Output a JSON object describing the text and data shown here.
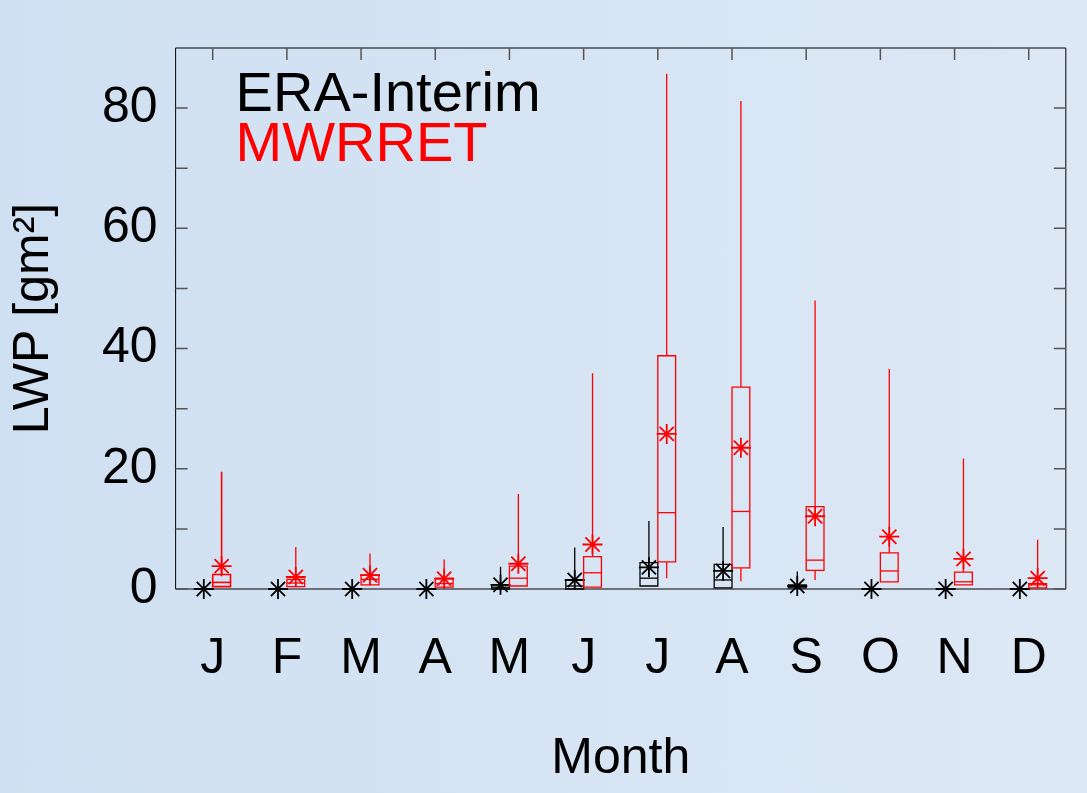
{
  "chart_data": {
    "type": "box",
    "xlabel": "Month",
    "ylabel": "LWP [gm²]",
    "categories": [
      "J",
      "F",
      "M",
      "A",
      "M",
      "J",
      "J",
      "A",
      "S",
      "O",
      "N",
      "D"
    ],
    "ylim": [
      0,
      90
    ],
    "yticks": [
      0,
      {
        "value": 10,
        "label": null
      },
      20,
      {
        "value": 30,
        "label": null
      },
      40,
      {
        "value": 50,
        "label": null
      },
      60,
      {
        "value": 70,
        "label": null
      },
      80
    ],
    "grid": false,
    "legend": "top left",
    "marker": "star",
    "series": [
      {
        "name": "ERA-Interim",
        "color": "#000000",
        "boxes": [
          {
            "low": 0,
            "q1": 0,
            "median": 0,
            "q3": 0,
            "high": 0,
            "mean": 0
          },
          {
            "low": 0,
            "q1": 0,
            "median": 0,
            "q3": 0,
            "high": 0,
            "mean": 0
          },
          {
            "low": 0,
            "q1": 0,
            "median": 0,
            "q3": 0,
            "high": 0,
            "mean": 0
          },
          {
            "low": 0,
            "q1": 0,
            "median": 0,
            "q3": 0,
            "high": 0,
            "mean": 0
          },
          {
            "low": 0,
            "q1": 0,
            "median": 0.3,
            "q3": 0.7,
            "high": 3.7,
            "mean": 0.7
          },
          {
            "low": 0,
            "q1": 0,
            "median": 0.5,
            "q3": 1.5,
            "high": 6.9,
            "mean": 1.5
          },
          {
            "low": 0.5,
            "q1": 0.5,
            "median": 1.8,
            "q3": 4.4,
            "high": 11.3,
            "mean": 3.6
          },
          {
            "low": 0.2,
            "q1": 0.2,
            "median": 1.5,
            "q3": 4.1,
            "high": 10.3,
            "mean": 3.0
          },
          {
            "low": 0,
            "q1": 0.2,
            "median": 0.4,
            "q3": 0.7,
            "high": 2.9,
            "mean": 0.5
          },
          {
            "low": 0,
            "q1": 0,
            "median": 0,
            "q3": 0,
            "high": 0,
            "mean": 0
          },
          {
            "low": 0,
            "q1": 0,
            "median": 0,
            "q3": 0,
            "high": 0,
            "mean": 0
          },
          {
            "low": 0,
            "q1": 0,
            "median": 0,
            "q3": 0,
            "high": 0,
            "mean": 0
          }
        ]
      },
      {
        "name": "MWRRET",
        "color": "#ff0000",
        "boxes": [
          {
            "low": 0.4,
            "q1": 0.4,
            "median": 1.1,
            "q3": 2.4,
            "high": 19.5,
            "mean": 3.8
          },
          {
            "low": 0.4,
            "q1": 0.4,
            "median": 1.0,
            "q3": 1.6,
            "high": 7.0,
            "mean": 2.0
          },
          {
            "low": 0.7,
            "q1": 0.7,
            "median": 1.6,
            "q3": 2.3,
            "high": 5.9,
            "mean": 2.3
          },
          {
            "low": 0.3,
            "q1": 0.3,
            "median": 0.9,
            "q3": 1.8,
            "high": 4.9,
            "mean": 1.7
          },
          {
            "low": 0.5,
            "q1": 0.5,
            "median": 1.8,
            "q3": 3.8,
            "high": 15.8,
            "mean": 4.2
          },
          {
            "low": 0.3,
            "q1": 0.3,
            "median": 2.7,
            "q3": 5.4,
            "high": 35.9,
            "mean": 7.4
          },
          {
            "low": 1.8,
            "q1": 4.5,
            "median": 12.7,
            "q3": 38.8,
            "high": 85.7,
            "mean": 25.8
          },
          {
            "low": 1.3,
            "q1": 3.5,
            "median": 12.9,
            "q3": 33.6,
            "high": 81.2,
            "mean": 23.5
          },
          {
            "low": 1.5,
            "q1": 3.1,
            "median": 4.8,
            "q3": 13.7,
            "high": 48.0,
            "mean": 12.1
          },
          {
            "low": 1.2,
            "q1": 1.2,
            "median": 3.0,
            "q3": 6.0,
            "high": 36.6,
            "mean": 8.7
          },
          {
            "low": 0.7,
            "q1": 0.7,
            "median": 1.2,
            "q3": 2.8,
            "high": 21.7,
            "mean": 5.0
          },
          {
            "low": 0.2,
            "q1": 0.2,
            "median": 0.7,
            "q3": 0.9,
            "high": 8.2,
            "mean": 1.8
          }
        ]
      }
    ]
  }
}
